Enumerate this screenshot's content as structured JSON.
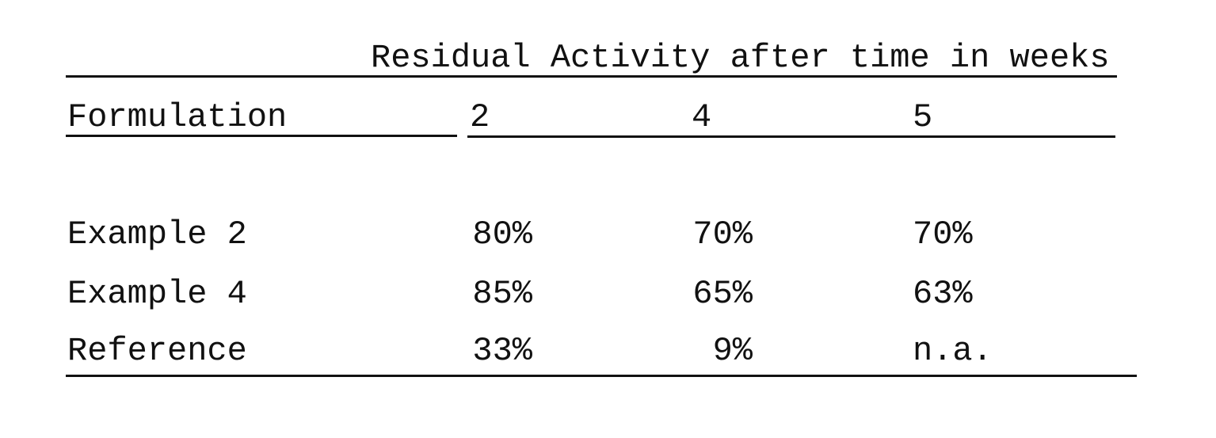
{
  "table": {
    "spanner": "Residual Activity after time in weeks",
    "columns": [
      "Formulation",
      "2",
      "4",
      "5"
    ],
    "rows": [
      [
        "Example 2",
        "80%",
        "70%",
        "70%"
      ],
      [
        "Example 4",
        "85%",
        "65%",
        "63%"
      ],
      [
        "Reference",
        "33%",
        "9%",
        "n.a."
      ]
    ]
  }
}
